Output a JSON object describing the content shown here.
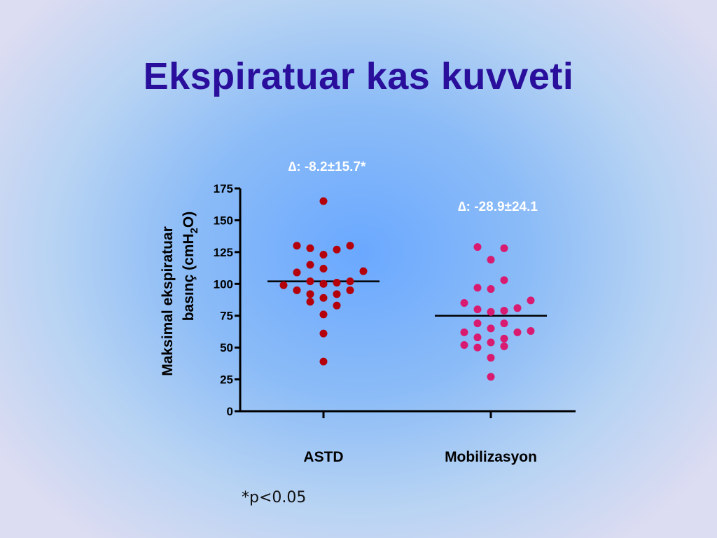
{
  "slide": {
    "title": "Ekspiratuar kas kuvveti",
    "note": "*p<0.05"
  },
  "colors": {
    "title": "#2a0f9c",
    "astd_points": "#b3000b",
    "mobil_points": "#d81b70",
    "annotation": "#ffffff"
  },
  "chart_data": {
    "type": "scatter",
    "ylabel_line1": "Maksimal ekspiratuar",
    "ylabel_line2_prefix": "basınç (cmH",
    "ylabel_sub": "2",
    "ylabel_line2_suffix": "O)",
    "ylim": [
      0,
      175
    ],
    "yticks": [
      "0",
      "25",
      "50",
      "75",
      "100",
      "125",
      "150",
      "175"
    ],
    "categories": [
      "ASTD",
      "Mobilizasyon"
    ],
    "series": [
      {
        "category": "ASTD",
        "mean": 102,
        "annotation": "∆: -8.2±15.7*",
        "points": [
          {
            "x": 0,
            "y": 165
          },
          {
            "x": -2,
            "y": 130
          },
          {
            "x": -1,
            "y": 128
          },
          {
            "x": 1,
            "y": 127
          },
          {
            "x": 2,
            "y": 130
          },
          {
            "x": 0,
            "y": 123
          },
          {
            "x": -1,
            "y": 115
          },
          {
            "x": -2,
            "y": 109
          },
          {
            "x": 0,
            "y": 112
          },
          {
            "x": 3,
            "y": 110
          },
          {
            "x": -3,
            "y": 99
          },
          {
            "x": -1,
            "y": 102
          },
          {
            "x": 0,
            "y": 100
          },
          {
            "x": 1,
            "y": 101
          },
          {
            "x": 2,
            "y": 102
          },
          {
            "x": -2,
            "y": 95
          },
          {
            "x": 2,
            "y": 95
          },
          {
            "x": -1,
            "y": 92
          },
          {
            "x": 1,
            "y": 92
          },
          {
            "x": 0,
            "y": 89
          },
          {
            "x": -1,
            "y": 86
          },
          {
            "x": 1,
            "y": 83
          },
          {
            "x": 0,
            "y": 76
          },
          {
            "x": 0,
            "y": 61
          },
          {
            "x": 0,
            "y": 39
          }
        ]
      },
      {
        "category": "Mobilizasyon",
        "mean": 75,
        "annotation": "∆: -28.9±24.1",
        "points": [
          {
            "x": -1,
            "y": 129
          },
          {
            "x": 1,
            "y": 128
          },
          {
            "x": 0,
            "y": 119
          },
          {
            "x": 1,
            "y": 103
          },
          {
            "x": -1,
            "y": 97
          },
          {
            "x": 0,
            "y": 96
          },
          {
            "x": -2,
            "y": 85
          },
          {
            "x": 3,
            "y": 87
          },
          {
            "x": -1,
            "y": 80
          },
          {
            "x": 0,
            "y": 78
          },
          {
            "x": 1,
            "y": 79
          },
          {
            "x": 2,
            "y": 81
          },
          {
            "x": -1,
            "y": 69
          },
          {
            "x": 1,
            "y": 69
          },
          {
            "x": -2,
            "y": 62
          },
          {
            "x": 0,
            "y": 65
          },
          {
            "x": 2,
            "y": 62
          },
          {
            "x": 3,
            "y": 63
          },
          {
            "x": -1,
            "y": 58
          },
          {
            "x": 1,
            "y": 57
          },
          {
            "x": -2,
            "y": 52
          },
          {
            "x": -1,
            "y": 50
          },
          {
            "x": 0,
            "y": 54
          },
          {
            "x": 1,
            "y": 51
          },
          {
            "x": 0,
            "y": 42
          },
          {
            "x": 0,
            "y": 27
          }
        ]
      }
    ]
  }
}
